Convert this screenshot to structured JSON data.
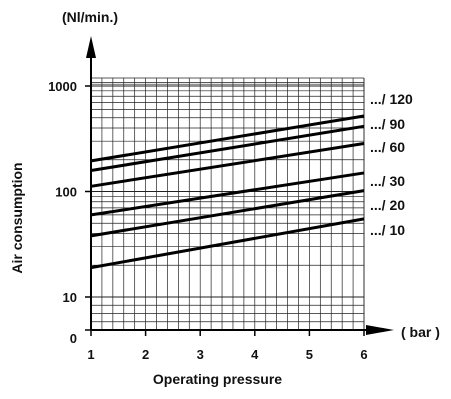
{
  "chart_data": {
    "type": "line",
    "xlabel": "Operating pressure",
    "ylabel": "Air consumption",
    "x_unit": "( bar )",
    "y_unit": "(Nl/min.)",
    "y_scale": "log",
    "xlim": [
      1,
      6
    ],
    "ylim": [
      10,
      1000
    ],
    "grid": true,
    "x_ticks": [
      "1",
      "2",
      "3",
      "4",
      "5",
      "6"
    ],
    "y_ticks": [
      "10",
      "100",
      "1000"
    ],
    "y_zero_tick": "0",
    "series": [
      {
        "name": ".../ 120",
        "x": [
          1,
          6
        ],
        "y": [
          195,
          520
        ]
      },
      {
        "name": ".../ 90",
        "x": [
          1,
          6
        ],
        "y": [
          158,
          415
        ]
      },
      {
        "name": ".../ 60",
        "x": [
          1,
          6
        ],
        "y": [
          112,
          285
        ]
      },
      {
        "name": ".../ 30",
        "x": [
          1,
          6
        ],
        "y": [
          60,
          150
        ]
      },
      {
        "name": ".../ 20",
        "x": [
          1,
          6
        ],
        "y": [
          38,
          102
        ]
      },
      {
        "name": ".../ 10",
        "x": [
          1,
          6
        ],
        "y": [
          19,
          55
        ]
      }
    ]
  }
}
